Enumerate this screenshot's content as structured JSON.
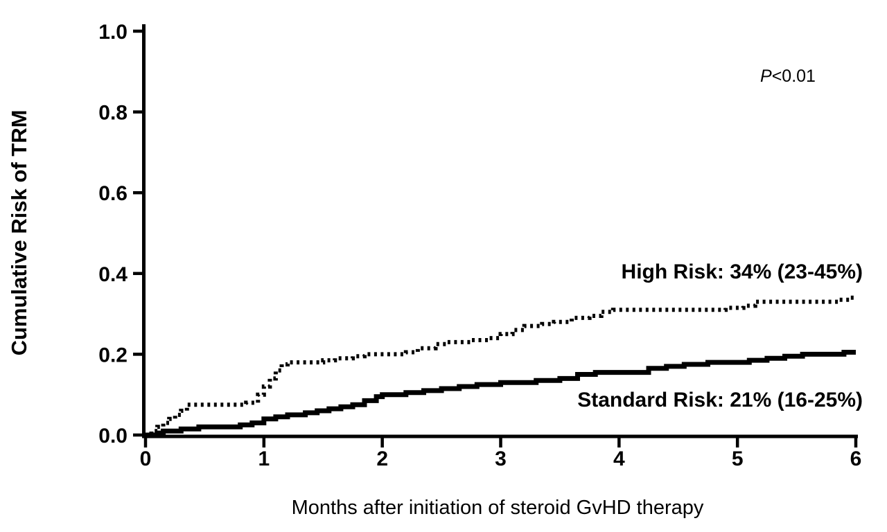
{
  "chart_data": {
    "type": "line",
    "subtype": "step-cumulative-incidence",
    "title": "",
    "xlabel": "Months after initiation of steroid GvHD therapy",
    "ylabel": "Cumulative Risk of TRM",
    "xlim": [
      0,
      6
    ],
    "ylim": [
      0,
      1.0
    ],
    "grid": false,
    "legend_position": "inline-annotations",
    "background_color": "#ffffff",
    "line_color": "#000000",
    "x_ticks": [
      {
        "value": 0,
        "label": "0"
      },
      {
        "value": 1,
        "label": "1"
      },
      {
        "value": 2,
        "label": "2"
      },
      {
        "value": 3,
        "label": "3"
      },
      {
        "value": 4,
        "label": "4"
      },
      {
        "value": 5,
        "label": "5"
      },
      {
        "value": 6,
        "label": "6"
      }
    ],
    "y_ticks": [
      {
        "value": 0.0,
        "label": "0.0"
      },
      {
        "value": 0.2,
        "label": "0.2"
      },
      {
        "value": 0.4,
        "label": "0.4"
      },
      {
        "value": 0.6,
        "label": "0.6"
      },
      {
        "value": 0.8,
        "label": "0.8"
      },
      {
        "value": 1.0,
        "label": "1.0"
      }
    ],
    "annotations": {
      "p_italic": "P",
      "p_text": "<0.01",
      "high_risk": "High Risk: 34% (23-45%)",
      "standard_risk": "Standard Risk: 21% (16-25%)"
    },
    "series": [
      {
        "name": "High Risk",
        "final_estimate": "34% (23-45%)",
        "style": "dotted",
        "points": [
          [
            0,
            0
          ],
          [
            0.05,
            0.01
          ],
          [
            0.1,
            0.02
          ],
          [
            0.15,
            0.03
          ],
          [
            0.2,
            0.04
          ],
          [
            0.25,
            0.05
          ],
          [
            0.3,
            0.06
          ],
          [
            0.35,
            0.075
          ],
          [
            0.85,
            0.08
          ],
          [
            0.95,
            0.1
          ],
          [
            1.0,
            0.12
          ],
          [
            1.05,
            0.14
          ],
          [
            1.1,
            0.16
          ],
          [
            1.15,
            0.175
          ],
          [
            1.2,
            0.18
          ],
          [
            1.5,
            0.185
          ],
          [
            1.6,
            0.19
          ],
          [
            1.75,
            0.195
          ],
          [
            1.85,
            0.2
          ],
          [
            2.2,
            0.205
          ],
          [
            2.3,
            0.215
          ],
          [
            2.45,
            0.225
          ],
          [
            2.55,
            0.23
          ],
          [
            2.75,
            0.235
          ],
          [
            2.9,
            0.24
          ],
          [
            3.0,
            0.25
          ],
          [
            3.1,
            0.26
          ],
          [
            3.2,
            0.27
          ],
          [
            3.35,
            0.275
          ],
          [
            3.45,
            0.28
          ],
          [
            3.6,
            0.29
          ],
          [
            3.75,
            0.295
          ],
          [
            3.85,
            0.305
          ],
          [
            3.95,
            0.31
          ],
          [
            4.9,
            0.315
          ],
          [
            5.05,
            0.32
          ],
          [
            5.15,
            0.33
          ],
          [
            5.85,
            0.335
          ],
          [
            5.95,
            0.34
          ],
          [
            6,
            0.34
          ]
        ]
      },
      {
        "name": "Standard Risk",
        "final_estimate": "21% (16-25%)",
        "style": "solid",
        "points": [
          [
            0,
            0
          ],
          [
            0.1,
            0.005
          ],
          [
            0.15,
            0.01
          ],
          [
            0.3,
            0.015
          ],
          [
            0.45,
            0.02
          ],
          [
            0.8,
            0.025
          ],
          [
            0.9,
            0.03
          ],
          [
            1.0,
            0.04
          ],
          [
            1.1,
            0.045
          ],
          [
            1.2,
            0.05
          ],
          [
            1.35,
            0.055
          ],
          [
            1.45,
            0.06
          ],
          [
            1.55,
            0.065
          ],
          [
            1.65,
            0.07
          ],
          [
            1.75,
            0.075
          ],
          [
            1.85,
            0.085
          ],
          [
            1.95,
            0.095
          ],
          [
            2.0,
            0.1
          ],
          [
            2.2,
            0.105
          ],
          [
            2.35,
            0.11
          ],
          [
            2.5,
            0.115
          ],
          [
            2.65,
            0.12
          ],
          [
            2.8,
            0.125
          ],
          [
            3.0,
            0.13
          ],
          [
            3.3,
            0.135
          ],
          [
            3.5,
            0.14
          ],
          [
            3.65,
            0.15
          ],
          [
            3.8,
            0.155
          ],
          [
            4.25,
            0.165
          ],
          [
            4.4,
            0.17
          ],
          [
            4.55,
            0.175
          ],
          [
            4.75,
            0.18
          ],
          [
            5.1,
            0.185
          ],
          [
            5.25,
            0.19
          ],
          [
            5.4,
            0.195
          ],
          [
            5.55,
            0.2
          ],
          [
            5.9,
            0.205
          ],
          [
            6,
            0.205
          ]
        ]
      }
    ]
  }
}
